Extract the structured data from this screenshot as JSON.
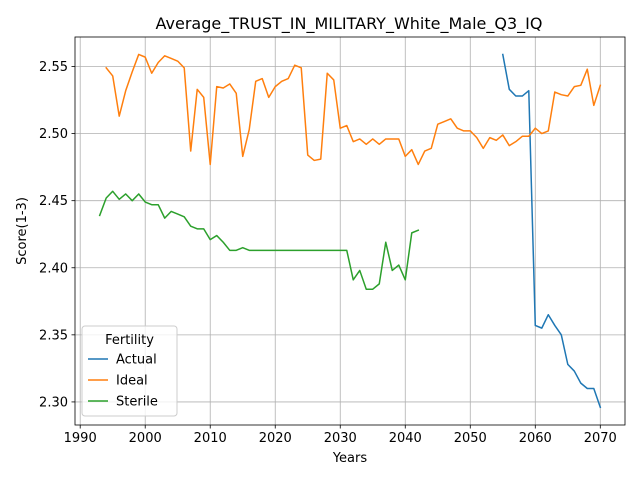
{
  "chart_data": {
    "type": "line",
    "title": "Average_TRUST_IN_MILITARY_White_Male_Q3_IQ",
    "xlabel": "Years",
    "ylabel": "Score(1-3)",
    "xlim": [
      1989.2,
      2073.8
    ],
    "ylim": [
      2.2828,
      2.572
    ],
    "x_ticks": [
      1990,
      2000,
      2010,
      2020,
      2030,
      2040,
      2050,
      2060,
      2070
    ],
    "y_ticks": [
      2.3,
      2.35,
      2.4,
      2.45,
      2.5,
      2.55
    ],
    "x_tick_labels": [
      "1990",
      "2000",
      "2010",
      "2020",
      "2030",
      "2040",
      "2050",
      "2060",
      "2070"
    ],
    "y_tick_labels": [
      "2.30",
      "2.35",
      "2.40",
      "2.45",
      "2.50",
      "2.55"
    ],
    "grid": true,
    "legend": {
      "title": "Fertility",
      "placement": "lower-left"
    },
    "series": [
      {
        "name": "Actual",
        "color": "#1f77b4",
        "x": [
          2055,
          2056,
          2057,
          2058,
          2059,
          2060,
          2061,
          2062,
          2063,
          2064,
          2065,
          2066,
          2067,
          2068,
          2069,
          2070
        ],
        "values": [
          2.559,
          2.533,
          2.528,
          2.528,
          2.532,
          2.357,
          2.355,
          2.365,
          2.357,
          2.35,
          2.328,
          2.323,
          2.314,
          2.31,
          2.31,
          2.296
        ]
      },
      {
        "name": "Ideal",
        "color": "#ff7f0e",
        "x": [
          1994,
          1995,
          1996,
          1997,
          1998,
          1999,
          2000,
          2001,
          2002,
          2003,
          2004,
          2005,
          2006,
          2007,
          2008,
          2009,
          2010,
          2011,
          2012,
          2013,
          2014,
          2015,
          2016,
          2017,
          2018,
          2019,
          2020,
          2021,
          2022,
          2023,
          2024,
          2025,
          2026,
          2027,
          2028,
          2029,
          2030,
          2031,
          2032,
          2033,
          2034,
          2035,
          2036,
          2037,
          2038,
          2039,
          2040,
          2041,
          2042,
          2043,
          2044,
          2045,
          2046,
          2047,
          2048,
          2049,
          2050,
          2051,
          2052,
          2053,
          2054,
          2055,
          2056,
          2057,
          2058,
          2059,
          2060,
          2061,
          2062,
          2063,
          2064,
          2065,
          2066,
          2067,
          2068,
          2069,
          2070
        ],
        "values": [
          2.549,
          2.543,
          2.513,
          2.532,
          2.546,
          2.559,
          2.557,
          2.545,
          2.553,
          2.558,
          2.556,
          2.554,
          2.549,
          2.487,
          2.533,
          2.527,
          2.477,
          2.535,
          2.534,
          2.537,
          2.53,
          2.483,
          2.503,
          2.539,
          2.541,
          2.527,
          2.535,
          2.539,
          2.541,
          2.551,
          2.549,
          2.484,
          2.48,
          2.481,
          2.545,
          2.54,
          2.504,
          2.506,
          2.494,
          2.496,
          2.492,
          2.496,
          2.492,
          2.496,
          2.496,
          2.496,
          2.483,
          2.488,
          2.477,
          2.487,
          2.489,
          2.507,
          2.509,
          2.511,
          2.504,
          2.502,
          2.502,
          2.497,
          2.489,
          2.497,
          2.495,
          2.499,
          2.491,
          2.494,
          2.498,
          2.498,
          2.504,
          2.5,
          2.502,
          2.531,
          2.529,
          2.528,
          2.535,
          2.536,
          2.548,
          2.521,
          2.536
        ]
      },
      {
        "name": "Sterile",
        "color": "#2ca02c",
        "x": [
          1993,
          1994,
          1995,
          1996,
          1997,
          1998,
          1999,
          2000,
          2001,
          2002,
          2003,
          2004,
          2005,
          2006,
          2007,
          2008,
          2009,
          2010,
          2011,
          2012,
          2013,
          2014,
          2015,
          2016,
          2017,
          2018,
          2019,
          2020,
          2021,
          2022,
          2023,
          2024,
          2025,
          2026,
          2027,
          2028,
          2029,
          2030,
          2031,
          2032,
          2033,
          2034,
          2035,
          2036,
          2037,
          2038,
          2039,
          2040,
          2041,
          2042
        ],
        "values": [
          2.439,
          2.452,
          2.457,
          2.451,
          2.455,
          2.45,
          2.455,
          2.449,
          2.447,
          2.447,
          2.437,
          2.442,
          2.44,
          2.438,
          2.431,
          2.429,
          2.429,
          2.421,
          2.424,
          2.419,
          2.413,
          2.413,
          2.415,
          2.413,
          2.413,
          2.413,
          2.413,
          2.413,
          2.413,
          2.413,
          2.413,
          2.413,
          2.413,
          2.413,
          2.413,
          2.413,
          2.413,
          2.413,
          2.413,
          2.391,
          2.398,
          2.384,
          2.384,
          2.388,
          2.419,
          2.398,
          2.402,
          2.391,
          2.426,
          2.428
        ]
      }
    ]
  }
}
